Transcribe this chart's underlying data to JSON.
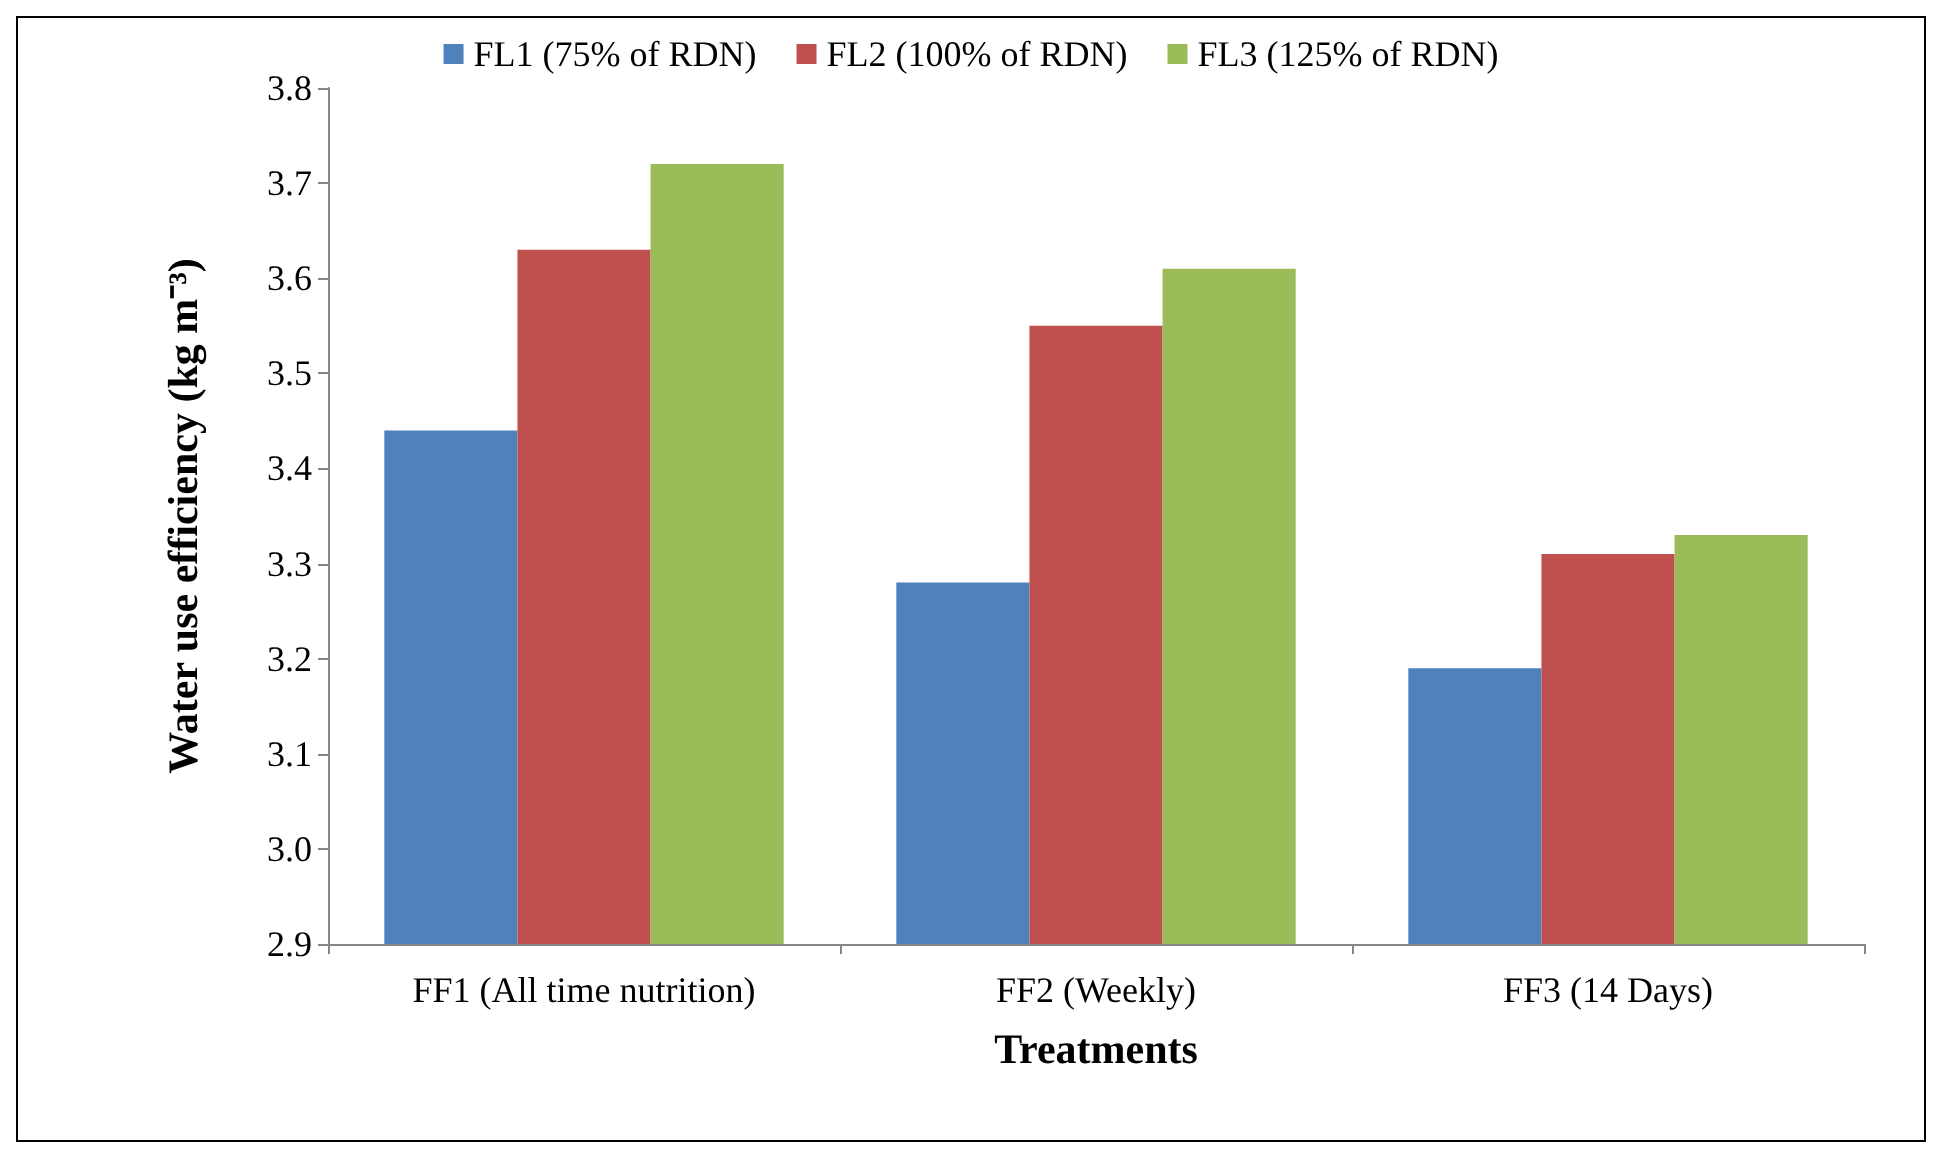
{
  "chart_data": {
    "type": "bar",
    "categories": [
      "FF1 (All time nutrition)",
      "FF2 (Weekly)",
      "FF3 (14 Days)"
    ],
    "series": [
      {
        "name": "FL1 (75% of RDN)",
        "color": "#4f81bd",
        "values": [
          3.44,
          3.28,
          3.19
        ]
      },
      {
        "name": "FL2 (100% of RDN)",
        "color": "#c0504d",
        "values": [
          3.63,
          3.55,
          3.31
        ]
      },
      {
        "name": "FL3 (125% of RDN)",
        "color": "#9bbb59",
        "values": [
          3.72,
          3.61,
          3.33
        ]
      }
    ],
    "xlabel": "Treatments",
    "ylabel": "Water use efficiency (kg m⁻³)",
    "ylim": [
      2.9,
      3.8
    ],
    "yticks": [
      2.9,
      {
        "value": 3,
        "label": "3.0"
      },
      3.1,
      3.2,
      3.3,
      3.4,
      3.5,
      3.6,
      3.7,
      3.8
    ],
    "grid": false,
    "legend": "top"
  }
}
